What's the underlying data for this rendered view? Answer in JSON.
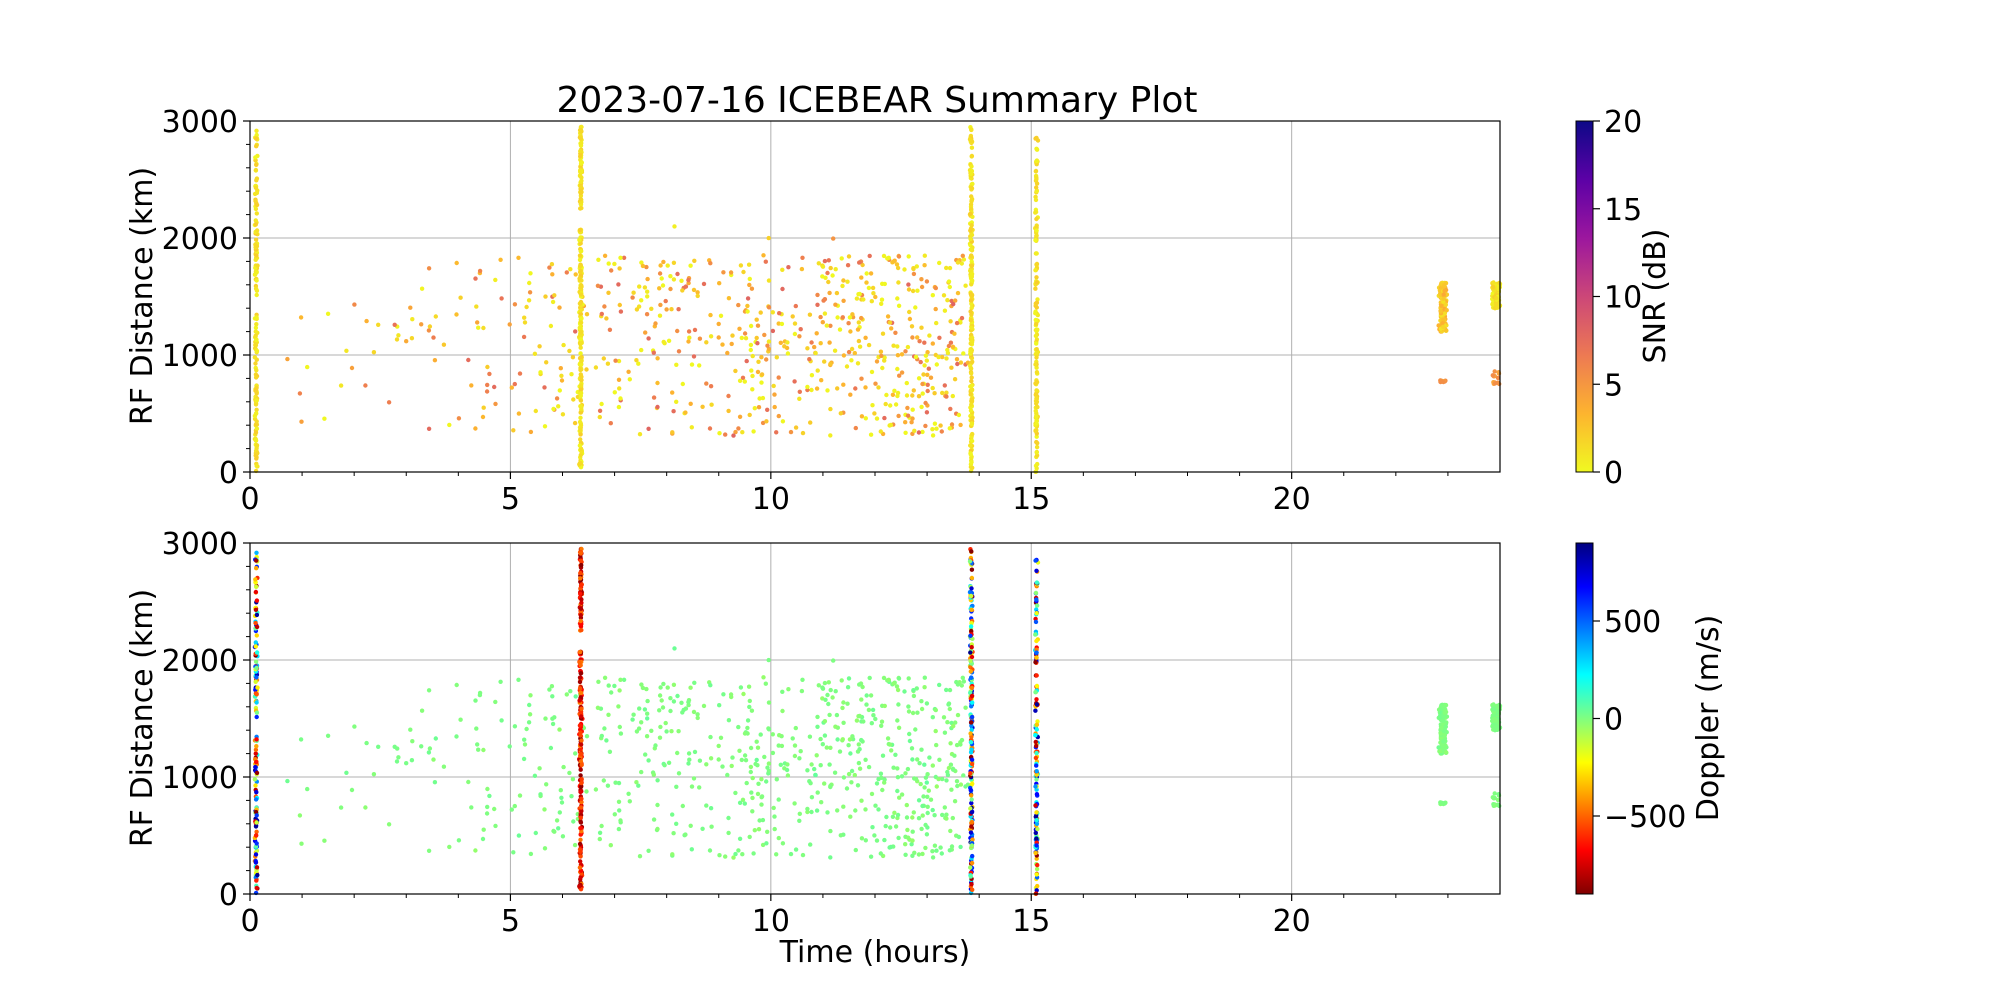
{
  "chart_data": [
    {
      "type": "scatter",
      "title": "2023-07-16 ICEBEAR Summary Plot",
      "xlabel": "",
      "ylabel": "RF Distance (km)",
      "xlim": [
        0,
        24
      ],
      "ylim": [
        0,
        3000
      ],
      "xticks": [
        "0",
        "5",
        "10",
        "15",
        "20"
      ],
      "yticks": [
        "0",
        "1000",
        "2000",
        "3000"
      ],
      "grid": true,
      "color_variable": "SNR",
      "colorbar": {
        "label": "SNR (dB)",
        "range": [
          0,
          20
        ],
        "ticks": [
          "0",
          "5",
          "10",
          "15",
          "20"
        ],
        "colormap": "plasma_r",
        "colors": [
          "#f0f921",
          "#fdb42f",
          "#ed7953",
          "#cc4778",
          "#9c179e",
          "#5c01a6",
          "#0d0887"
        ]
      }
    },
    {
      "type": "scatter",
      "title": "",
      "xlabel": "Time (hours)",
      "ylabel": "RF Distance (km)",
      "xlim": [
        0,
        24
      ],
      "ylim": [
        0,
        3000
      ],
      "xticks": [
        "0",
        "5",
        "10",
        "15",
        "20"
      ],
      "yticks": [
        "0",
        "1000",
        "2000",
        "3000"
      ],
      "grid": true,
      "color_variable": "Doppler",
      "colorbar": {
        "label": "Doppler (m/s)",
        "range": [
          -900,
          900
        ],
        "ticks": [
          "−500",
          "0",
          "500"
        ],
        "tick_values": [
          -500,
          0,
          500
        ],
        "colormap": "jet_r",
        "colors": [
          "#800000",
          "#ff0000",
          "#ff8000",
          "#ffff00",
          "#80ff80",
          "#00ffff",
          "#0080ff",
          "#0000ff",
          "#000080"
        ]
      }
    }
  ],
  "data_summary": {
    "scattered_points": {
      "time_range": [
        0.3,
        13.8
      ],
      "range_km": [
        300,
        2080
      ],
      "typical_snr_db": [
        0,
        7
      ],
      "typical_doppler_ms": [
        -50,
        50
      ]
    },
    "vertical_streaks": [
      {
        "time": 0.12,
        "range_km": [
          0,
          2950
        ],
        "snr_db": 1,
        "doppler": "mixed"
      },
      {
        "time": 6.35,
        "range_km": [
          0,
          2950
        ],
        "snr_db": 1,
        "doppler": "-500 to -900"
      },
      {
        "time": 13.85,
        "range_km": [
          0,
          2950
        ],
        "snr_db": 1,
        "doppler": "mixed"
      },
      {
        "time": 15.1,
        "range_km": [
          0,
          2950
        ],
        "snr_db": 1,
        "doppler": "mixed"
      }
    ],
    "clusters": [
      {
        "time_range": [
          22.8,
          23.0
        ],
        "range_km": [
          1200,
          1620
        ],
        "snr_db": 2,
        "doppler_ms": 0
      },
      {
        "time_range": [
          22.85,
          22.95
        ],
        "range_km": [
          760,
          780
        ],
        "snr_db": 5,
        "doppler_ms": 0
      },
      {
        "time_range": [
          23.85,
          24.0
        ],
        "range_km": [
          1400,
          1620
        ],
        "snr_db": 1,
        "doppler_ms": 0
      },
      {
        "time_range": [
          23.85,
          24.0
        ],
        "range_km": [
          750,
          850
        ],
        "snr_db": 5,
        "doppler_ms": 0
      }
    ]
  }
}
